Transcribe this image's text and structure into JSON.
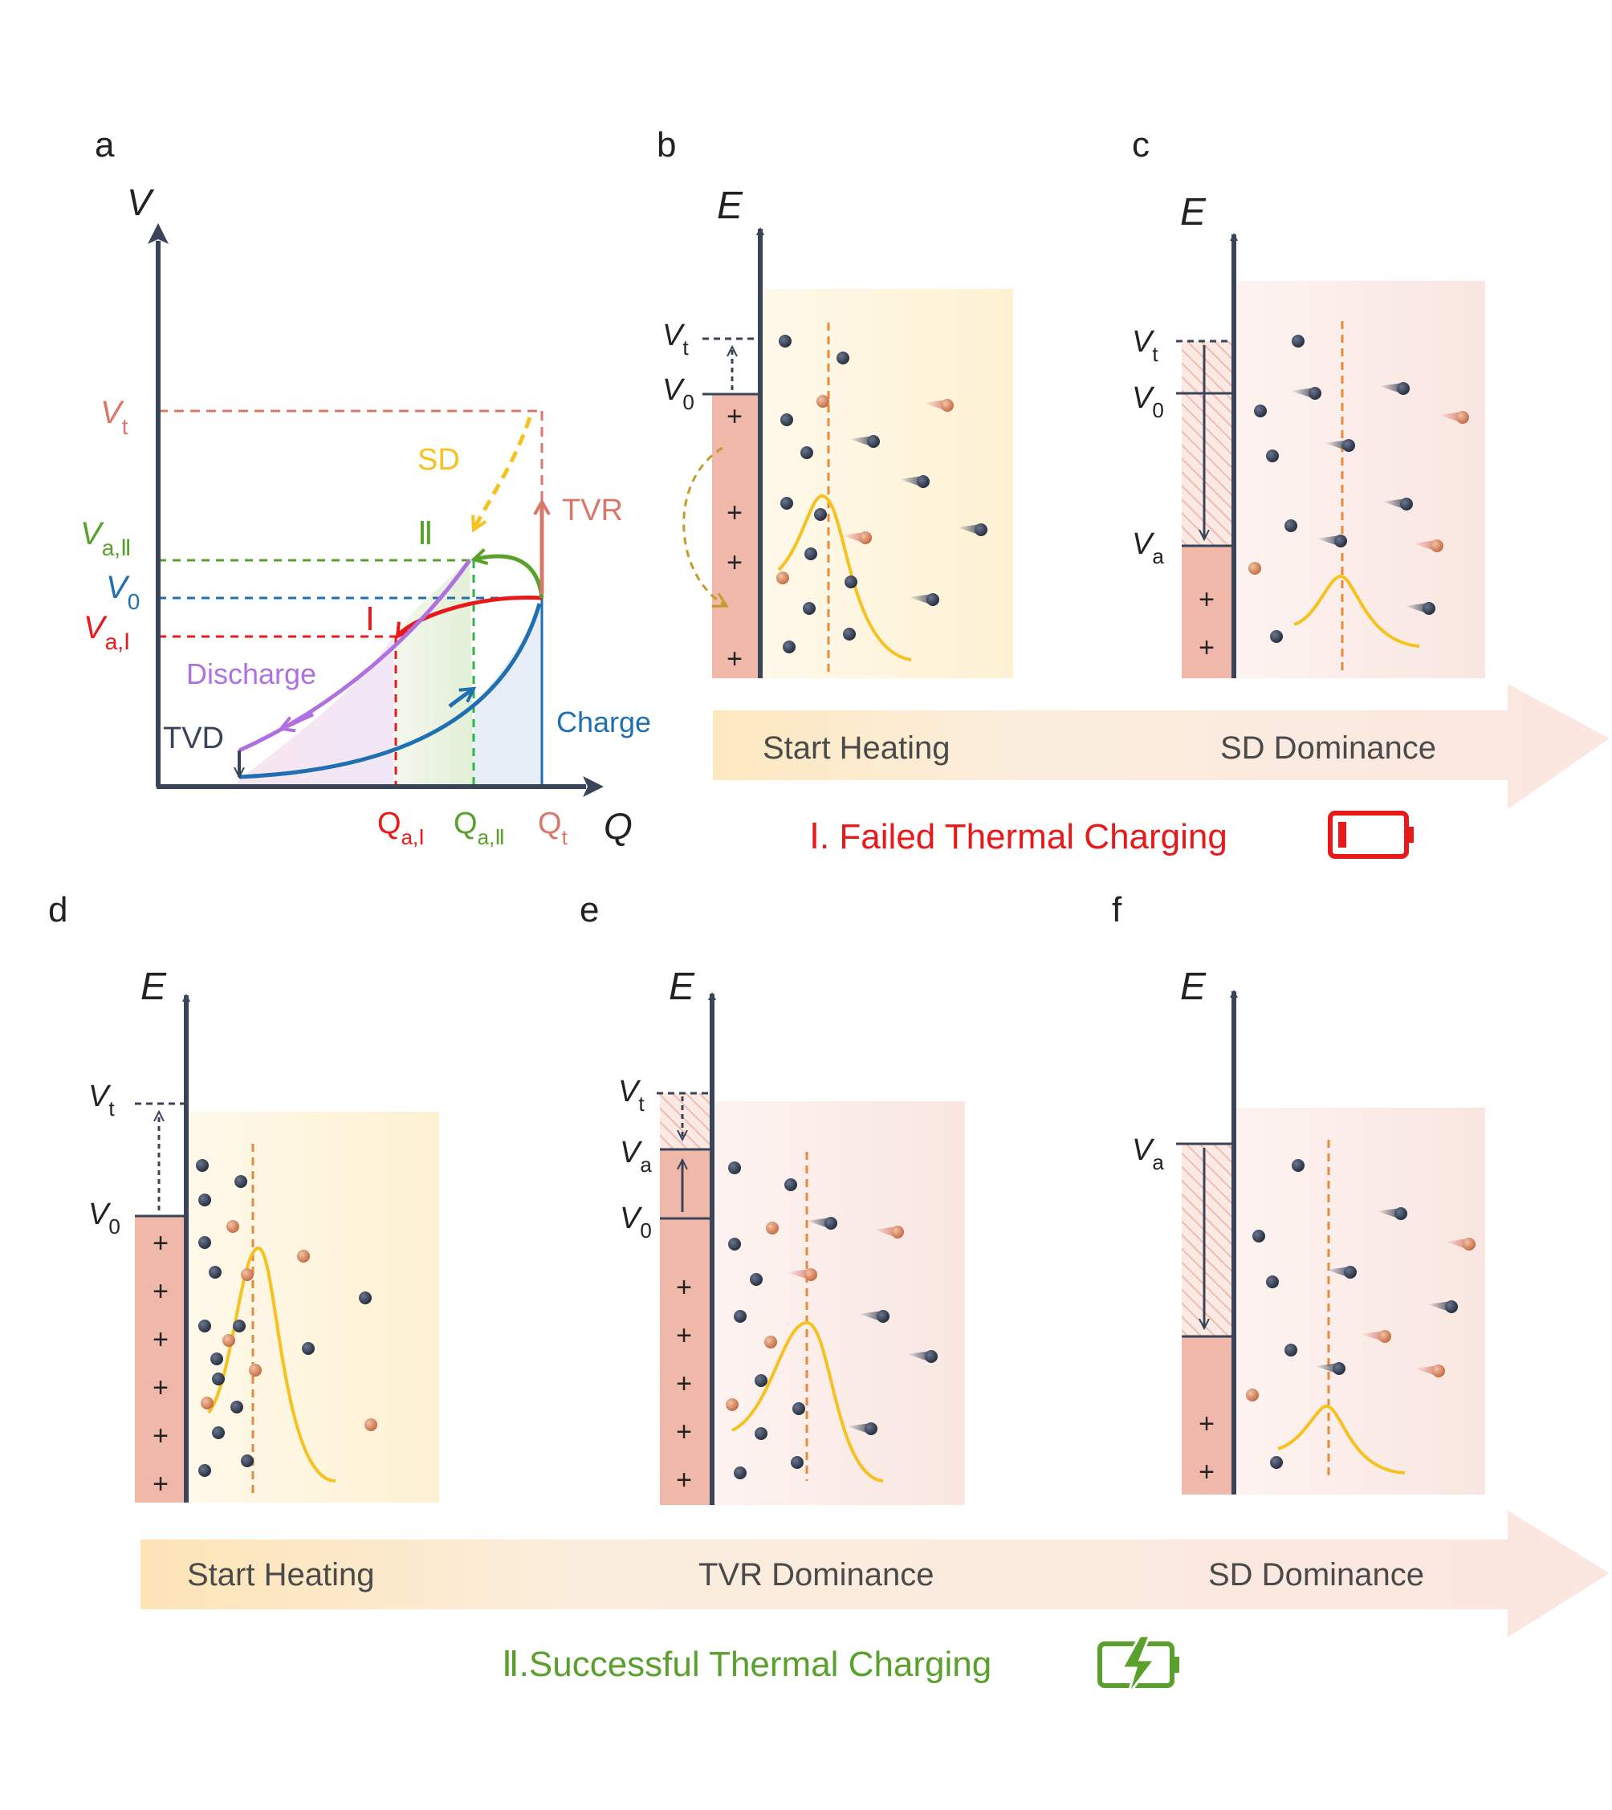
{
  "panels": {
    "a": {
      "letter": "a",
      "axis_v": "V",
      "axis_q": "Q",
      "label_vt": "V",
      "label_vt_sub": "t",
      "label_va2": "V",
      "label_va2_sub": "a,Ⅱ",
      "label_v0": "V",
      "label_v0_sub": "0",
      "label_va1": "V",
      "label_va1_sub": "a,Ⅰ",
      "label_qa1": "Q",
      "label_qa1_sub": "a,Ⅰ",
      "label_qa2": "Q",
      "label_qa2_sub": "a,Ⅱ",
      "label_qt": "Q",
      "label_qt_sub": "t",
      "sd": "SD",
      "tvr": "TVR",
      "roman_two": "Ⅱ",
      "roman_one": "Ⅰ",
      "discharge": "Discharge",
      "charge": "Charge",
      "tvd": "TVD"
    },
    "b": {
      "letter": "b",
      "axis_e": "E",
      "vt": "V",
      "vt_sub": "t",
      "v0": "V",
      "v0_sub": "0"
    },
    "c": {
      "letter": "c",
      "axis_e": "E",
      "vt": "V",
      "vt_sub": "t",
      "v0": "V",
      "v0_sub": "0",
      "va": "V",
      "va_sub": "a"
    },
    "d": {
      "letter": "d",
      "axis_e": "E",
      "vt": "V",
      "vt_sub": "t",
      "v0": "V",
      "v0_sub": "0"
    },
    "e": {
      "letter": "e",
      "axis_e": "E",
      "vt": "V",
      "vt_sub": "t",
      "va": "V",
      "va_sub": "a",
      "v0": "V",
      "v0_sub": "0"
    },
    "f": {
      "letter": "f",
      "axis_e": "E",
      "va": "V",
      "va_sub": "a"
    }
  },
  "plus_sign": "+",
  "top_arrow": {
    "stage1": "Start Heating",
    "stage2": "SD Dominance"
  },
  "bottom_arrow": {
    "stage1": "Start Heating",
    "stage2": "TVR Dominance",
    "stage3": "SD Dominance"
  },
  "captions": {
    "failed": "Ⅰ. Failed Thermal Charging",
    "success": "Ⅱ.Successful Thermal Charging"
  },
  "colors": {
    "axis": "#3a4458",
    "red": "#e8191a",
    "green": "#5aa02c",
    "blue": "#1f6fb2",
    "purple": "#b071e0",
    "salmon": "#d9786a",
    "yellow": "#f5c220",
    "orange_dash": "#e98a3a",
    "bar_fill": "#efb8a8",
    "dark_text": "#4a4a4a"
  },
  "icons": [
    "battery-low-icon",
    "battery-charging-icon"
  ]
}
